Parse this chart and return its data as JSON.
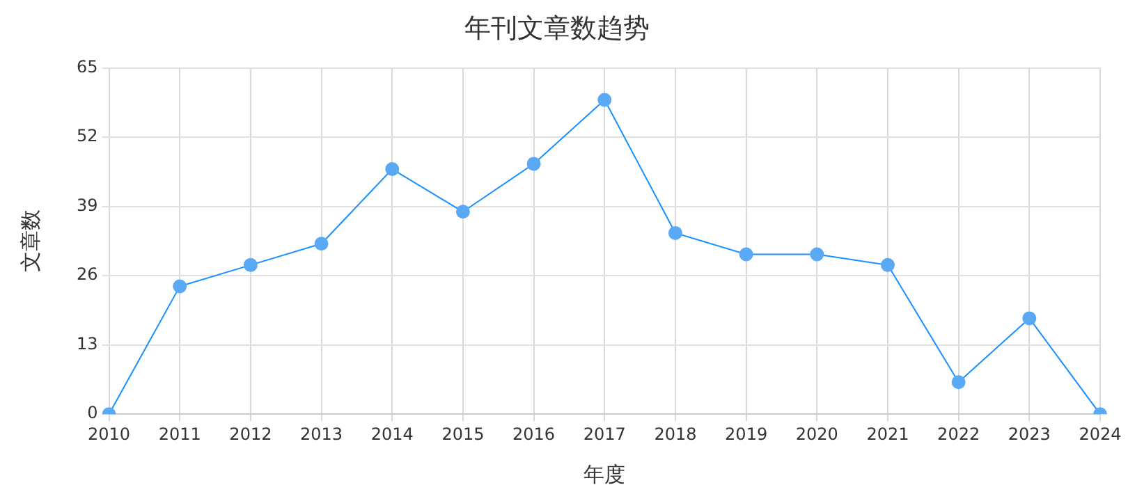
{
  "chart_data": {
    "type": "line",
    "title": "年刊文章数趋势",
    "xlabel": "年度",
    "ylabel": "文章数",
    "categories": [
      "2010",
      "2011",
      "2012",
      "2013",
      "2014",
      "2015",
      "2016",
      "2017",
      "2018",
      "2019",
      "2020",
      "2021",
      "2022",
      "2023",
      "2024"
    ],
    "series": [
      {
        "color": "#1890ff",
        "values": [
          0,
          24,
          28,
          32,
          46,
          38,
          47,
          59,
          34,
          30,
          30,
          28,
          6,
          18,
          0
        ]
      }
    ],
    "ylim": [
      0,
      65
    ],
    "yticks": [
      0,
      13,
      26,
      39,
      52,
      65
    ],
    "grid": true,
    "legend": false,
    "marker": "circle",
    "line_style": "solid"
  }
}
